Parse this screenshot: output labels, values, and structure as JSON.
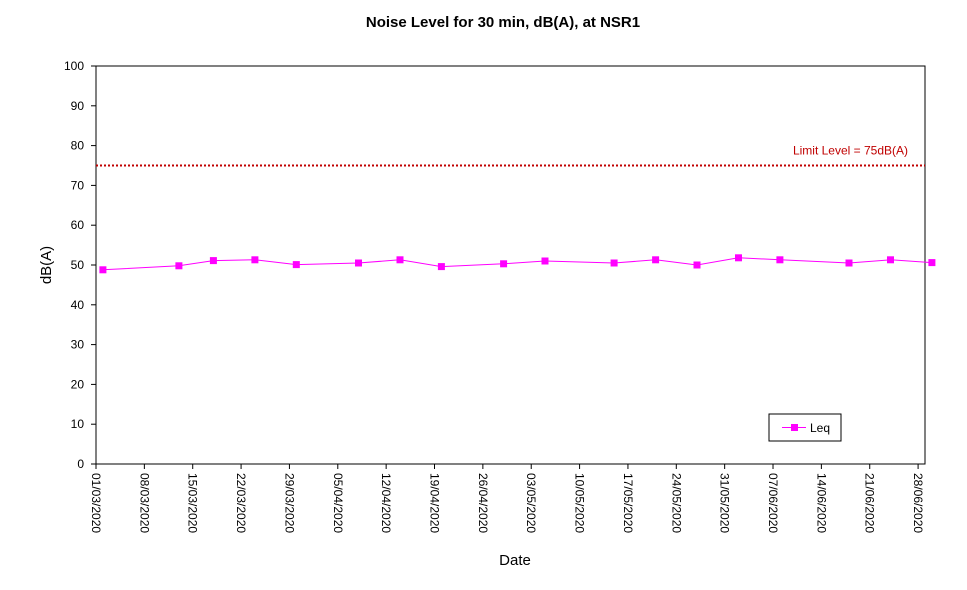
{
  "chart_data": {
    "type": "line",
    "title": "Noise Level for 30 min, dB(A), at NSR1",
    "xlabel": "Date",
    "ylabel": "dB(A)",
    "ylim": [
      0,
      100
    ],
    "yticks": [
      0,
      10,
      20,
      30,
      40,
      50,
      60,
      70,
      80,
      90,
      100
    ],
    "xlim": [
      "2020-03-01",
      "2020-06-29"
    ],
    "xtick_labels": [
      "01/03/2020",
      "08/03/2020",
      "15/03/2020",
      "22/03/2020",
      "29/03/2020",
      "05/04/2020",
      "12/04/2020",
      "19/04/2020",
      "26/04/2020",
      "03/05/2020",
      "10/05/2020",
      "17/05/2020",
      "24/05/2020",
      "31/05/2020",
      "07/06/2020",
      "14/06/2020",
      "21/06/2020",
      "28/06/2020"
    ],
    "xtick_dates": [
      "2020-03-01",
      "2020-03-08",
      "2020-03-15",
      "2020-03-22",
      "2020-03-29",
      "2020-04-05",
      "2020-04-12",
      "2020-04-19",
      "2020-04-26",
      "2020-05-03",
      "2020-05-10",
      "2020-05-17",
      "2020-05-24",
      "2020-05-31",
      "2020-06-07",
      "2020-06-14",
      "2020-06-21",
      "2020-06-28"
    ],
    "grid": false,
    "legend_position": "bottom-right",
    "series": [
      {
        "name": "Leq",
        "color": "#ff00ff",
        "marker": "square",
        "points": [
          {
            "x": "2020-03-02",
            "y": 48.8
          },
          {
            "x": "2020-03-13",
            "y": 49.8
          },
          {
            "x": "2020-03-18",
            "y": 51.1
          },
          {
            "x": "2020-03-24",
            "y": 51.3
          },
          {
            "x": "2020-03-30",
            "y": 50.1
          },
          {
            "x": "2020-04-08",
            "y": 50.5
          },
          {
            "x": "2020-04-14",
            "y": 51.3
          },
          {
            "x": "2020-04-20",
            "y": 49.6
          },
          {
            "x": "2020-04-29",
            "y": 50.3
          },
          {
            "x": "2020-05-05",
            "y": 51.0
          },
          {
            "x": "2020-05-15",
            "y": 50.5
          },
          {
            "x": "2020-05-21",
            "y": 51.3
          },
          {
            "x": "2020-05-27",
            "y": 50.0
          },
          {
            "x": "2020-06-02",
            "y": 51.8
          },
          {
            "x": "2020-06-08",
            "y": 51.3
          },
          {
            "x": "2020-06-18",
            "y": 50.5
          },
          {
            "x": "2020-06-24",
            "y": 51.3
          },
          {
            "x": "2020-06-30",
            "y": 50.6
          }
        ]
      }
    ],
    "limit_line": {
      "value": 75,
      "label": "Limit Level  = 75dB(A)",
      "color": "#c00000"
    }
  }
}
